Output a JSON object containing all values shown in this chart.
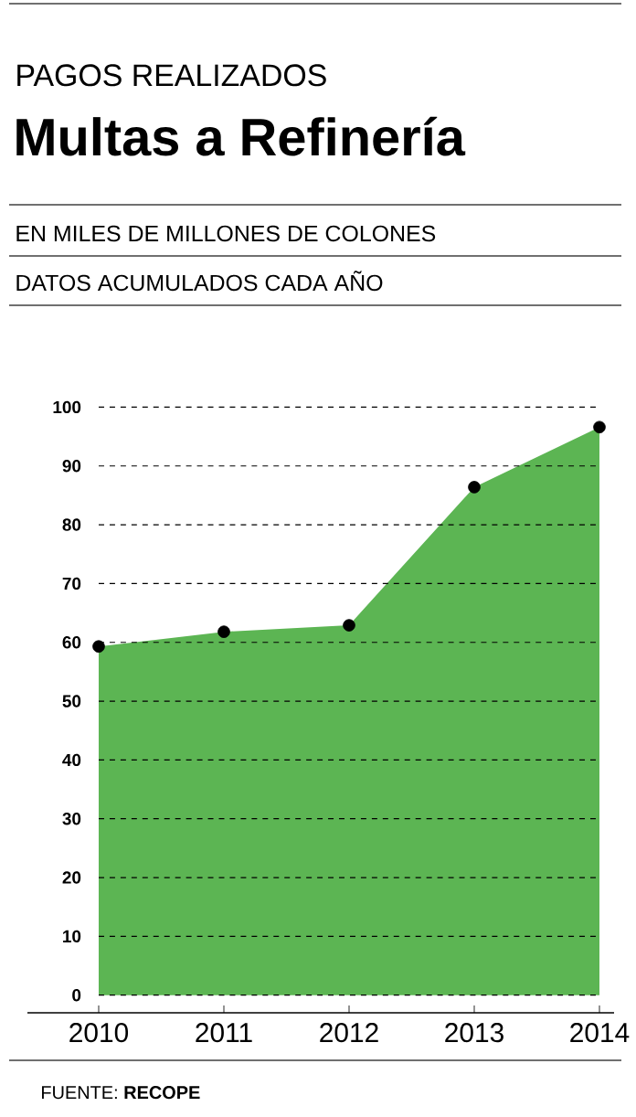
{
  "chart_data": {
    "type": "area",
    "subtitle": "PAGOS REALIZADOS",
    "title": "Multas a Refinería",
    "annotations": [
      "EN MILES DE MILLONES DE COLONES",
      "DATOS ACUMULADOS CADA AÑO",
      "FUENTE: **RECOPE**"
    ],
    "categories": [
      "2010",
      "2011",
      "2012",
      "2013",
      "2014"
    ],
    "series": [
      {
        "color": "#5cb553",
        "values": [
          59.3,
          61.8,
          62.9,
          86.4,
          96.6
        ]
      }
    ],
    "ylim": [
      -3,
      100
    ],
    "yticks": [
      0,
      10,
      20,
      30,
      40,
      50,
      60,
      70,
      80,
      90,
      100
    ],
    "grid": "y",
    "marker": "circle"
  }
}
